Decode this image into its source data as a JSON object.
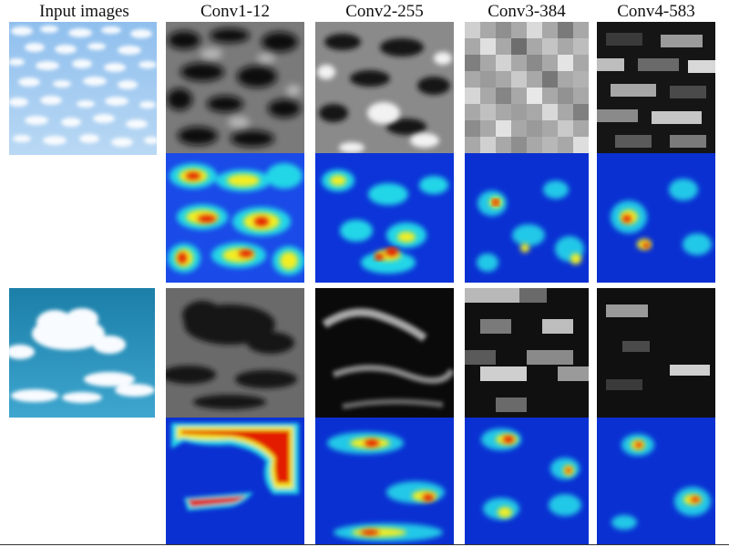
{
  "headers": [
    "Input images",
    "Conv1-12",
    "Conv2-255",
    "Conv3-384",
    "Conv4-583"
  ],
  "rows": [
    {
      "input_subject": "cirrocumulus-cloud-sky",
      "tiles": [
        "feature-map",
        "feature-map",
        "feature-map",
        "feature-map"
      ],
      "heatmaps": [
        "activation-heatmap",
        "activation-heatmap",
        "activation-heatmap",
        "activation-heatmap"
      ]
    },
    {
      "input_subject": "cumulus-cloud-sky",
      "tiles": [
        "feature-map",
        "feature-map",
        "feature-map",
        "feature-map"
      ],
      "heatmaps": [
        "activation-heatmap",
        "activation-heatmap",
        "activation-heatmap",
        "activation-heatmap"
      ]
    }
  ],
  "colors": {
    "heat_low": "#0a2fd0",
    "heat_mid": "#19e0e0",
    "heat_high_1": "#f5f020",
    "heat_high_2": "#ff7a00",
    "heat_peak": "#e00000",
    "sky_light": "#9dc8ef",
    "sky_teal": "#1f86b0"
  }
}
